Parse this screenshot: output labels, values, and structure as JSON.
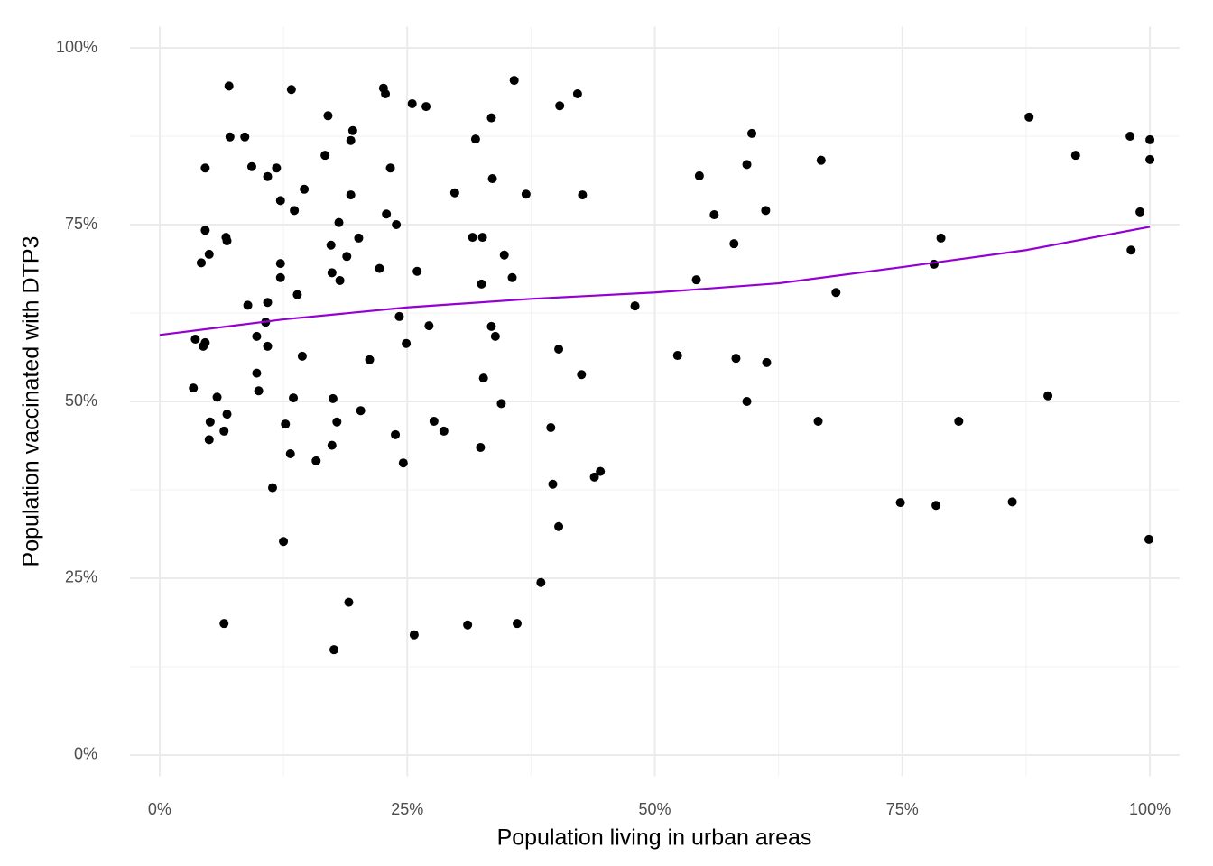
{
  "chart_data": {
    "type": "scatter",
    "x_label": "Population living in urban areas",
    "y_label": "Population vaccinated with DTP3",
    "color": "#000000",
    "x": [
      7.0,
      13.3,
      22.6,
      22.8,
      25.5,
      26.9,
      35.8,
      40.4,
      42.2,
      17.0,
      33.5,
      19.5,
      7.1,
      8.6,
      19.3,
      31.9,
      16.7,
      4.6,
      9.3,
      11.8,
      23.3,
      10.9,
      33.6,
      14.6,
      19.3,
      29.8,
      37.0,
      42.7,
      12.2,
      13.6,
      22.9,
      18.1,
      23.9,
      4.6,
      6.7,
      6.8,
      20.1,
      31.6,
      32.6,
      17.3,
      5.0,
      18.9,
      34.8,
      4.2,
      12.2,
      22.2,
      17.4,
      26.0,
      12.2,
      35.6,
      18.2,
      32.5,
      13.9,
      10.9,
      8.9,
      24.2,
      10.7,
      27.2,
      33.5,
      3.6,
      9.8,
      33.9,
      4.6,
      4.4,
      10.9,
      24.9,
      40.3,
      14.4,
      21.2,
      9.8,
      42.6,
      32.7,
      3.4,
      10.0,
      5.8,
      13.5,
      17.5,
      34.5,
      20.3,
      6.8,
      5.1,
      12.7,
      17.9,
      27.7,
      39.5,
      6.5,
      28.7,
      23.8,
      5.0,
      17.4,
      32.4,
      13.2,
      15.8,
      24.6,
      44.5,
      43.9,
      39.7,
      11.4,
      40.3,
      12.5,
      38.5,
      19.1,
      6.5,
      31.1,
      36.1,
      25.7,
      17.6,
      59.8,
      59.3,
      54.5,
      66.8,
      56.0,
      61.2,
      58.0,
      54.2,
      48.0,
      68.3,
      52.3,
      58.2,
      61.3,
      59.3,
      66.5,
      74.8,
      78.4,
      86.1,
      80.7,
      89.7,
      78.2,
      78.9,
      87.8,
      92.5,
      98.0,
      100,
      100,
      99.0,
      98.1,
      99.9
    ],
    "values": [
      94.6,
      94.1,
      94.3,
      93.5,
      92.1,
      91.7,
      95.4,
      91.8,
      93.5,
      90.4,
      90.1,
      88.3,
      87.4,
      87.4,
      86.9,
      87.1,
      84.8,
      83.0,
      83.2,
      83.0,
      83.0,
      81.8,
      81.5,
      80.0,
      79.2,
      79.5,
      79.3,
      79.2,
      78.4,
      77.0,
      76.5,
      75.3,
      75.0,
      74.2,
      73.2,
      72.7,
      73.1,
      73.2,
      73.2,
      72.1,
      70.8,
      70.5,
      70.7,
      69.6,
      69.5,
      68.8,
      68.2,
      68.4,
      67.5,
      67.5,
      67.1,
      66.6,
      65.1,
      64.0,
      63.6,
      62.0,
      61.2,
      60.7,
      60.6,
      58.8,
      59.2,
      59.2,
      58.3,
      57.8,
      57.8,
      58.2,
      57.4,
      56.4,
      55.9,
      54.0,
      53.8,
      53.3,
      51.9,
      51.5,
      50.6,
      50.5,
      50.4,
      49.7,
      48.7,
      48.2,
      47.1,
      46.8,
      47.1,
      47.2,
      46.3,
      45.8,
      45.8,
      45.3,
      44.6,
      43.8,
      43.5,
      42.6,
      41.6,
      41.3,
      40.1,
      39.3,
      38.3,
      37.8,
      32.3,
      30.2,
      24.4,
      21.6,
      18.6,
      18.4,
      18.6,
      17.0,
      14.9,
      87.9,
      83.5,
      81.9,
      84.1,
      76.4,
      77.0,
      72.3,
      67.2,
      63.5,
      65.4,
      56.5,
      56.1,
      55.5,
      50.0,
      47.2,
      35.7,
      35.3,
      35.8,
      47.2,
      50.8,
      69.4,
      73.1,
      90.2,
      84.8,
      87.5,
      87.0,
      84.2,
      76.8,
      71.4,
      30.5
    ],
    "smooth": {
      "color": "#9400d3",
      "x": [
        0,
        12.5,
        25,
        37.5,
        50,
        62.5,
        75,
        87.5,
        100
      ],
      "values": [
        59.4,
        61.6,
        63.3,
        64.5,
        65.4,
        66.7,
        69.0,
        71.4,
        74.7
      ]
    },
    "xlim": [
      -3,
      103
    ],
    "ylim": [
      -3,
      103
    ],
    "xticks": [
      {
        "value": 0,
        "label": "0%"
      },
      {
        "value": 25,
        "label": "25%"
      },
      {
        "value": 50,
        "label": "50%"
      },
      {
        "value": 75,
        "label": "75%"
      },
      {
        "value": 100,
        "label": "100%"
      }
    ],
    "yticks": [
      {
        "value": 0,
        "label": "0%"
      },
      {
        "value": 25,
        "label": "25%"
      },
      {
        "value": 50,
        "label": "50%"
      },
      {
        "value": 75,
        "label": "75%"
      },
      {
        "value": 100,
        "label": "100%"
      }
    ],
    "x_minor_ticks": [
      12.5,
      37.5,
      62.5,
      87.5
    ],
    "y_minor_ticks": [
      12.5,
      37.5,
      62.5,
      87.5
    ],
    "grid": true
  }
}
